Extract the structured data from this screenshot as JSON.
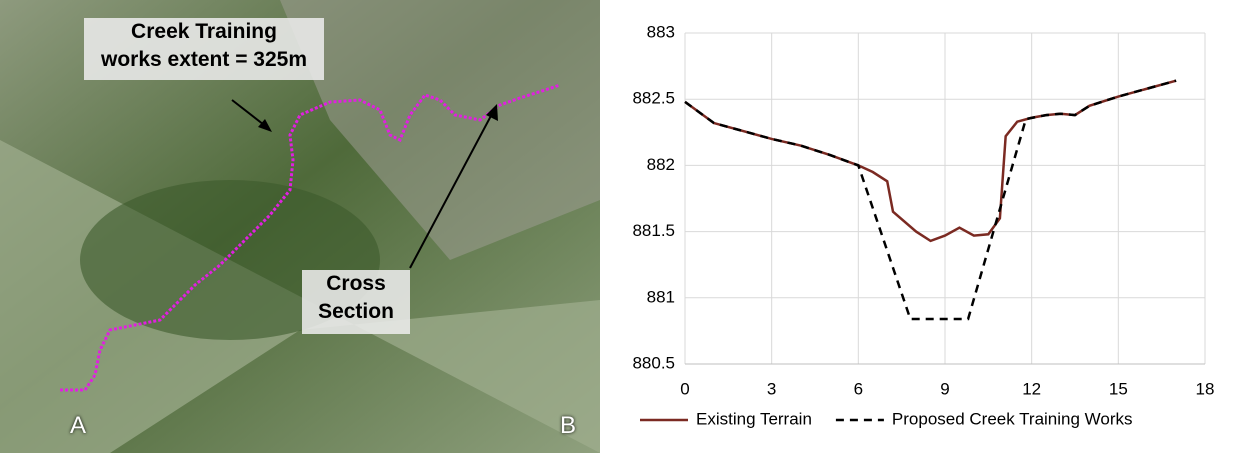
{
  "map": {
    "extent_label": [
      "Creek Training",
      "works extent = 325m"
    ],
    "section_label": [
      "Cross",
      "Section"
    ],
    "start_label": "A",
    "end_label": "B"
  },
  "chart_data": {
    "type": "line",
    "xlim": [
      0,
      18
    ],
    "xticks": [
      0,
      3,
      6,
      9,
      12,
      15,
      18
    ],
    "ylim": [
      880.5,
      883
    ],
    "yticks": [
      880.5,
      881,
      881.5,
      882,
      882.5,
      883
    ],
    "grid": true,
    "legend": "bottom",
    "series": [
      {
        "name": "Existing Terrain",
        "color": "#7b2a22",
        "dash": "solid",
        "x": [
          0,
          1,
          2,
          3,
          4,
          5,
          6,
          6.5,
          7,
          7.2,
          8,
          8.5,
          9,
          9.5,
          10,
          10.5,
          10.9,
          11.1,
          11.5,
          12,
          12.5,
          13,
          13.5,
          14,
          15,
          16,
          17
        ],
        "values": [
          882.48,
          882.32,
          882.26,
          882.2,
          882.15,
          882.08,
          882.0,
          881.95,
          881.88,
          881.65,
          881.5,
          881.43,
          881.47,
          881.53,
          881.47,
          881.48,
          881.6,
          882.22,
          882.33,
          882.36,
          882.38,
          882.39,
          882.38,
          882.45,
          882.52,
          882.58,
          882.64
        ]
      },
      {
        "name": "Proposed Creek Training Works",
        "color": "#000000",
        "dash": "dashed",
        "x": [
          0,
          1,
          2,
          3,
          4,
          5,
          6,
          7.8,
          9.8,
          11.8,
          12.5,
          13,
          13.5,
          14,
          15,
          16,
          17
        ],
        "values": [
          882.48,
          882.32,
          882.26,
          882.2,
          882.15,
          882.08,
          882.0,
          880.84,
          880.84,
          882.35,
          882.38,
          882.39,
          882.38,
          882.45,
          882.52,
          882.58,
          882.64
        ]
      }
    ]
  }
}
